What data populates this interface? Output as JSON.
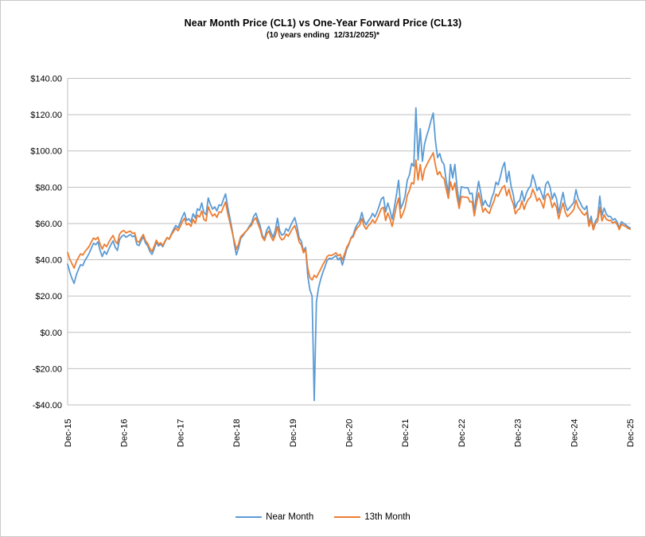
{
  "window": {
    "background": "#FFFFFF",
    "border_color": "#C9C9C9"
  },
  "title": "Near Month Price (CL1) vs One-Year Forward Price (CL13)",
  "subtitle": "(10 years ending  12/31/2025)*",
  "legend": [
    {
      "label": "Near Month",
      "color": "#5B9BD5"
    },
    {
      "label": "13th Month",
      "color": "#ED7D31"
    }
  ],
  "chart_data": {
    "type": "line",
    "title": "Near Month Price (CL1) vs One-Year Forward Price (CL13)",
    "subtitle": "(10 years ending  12/31/2025)*",
    "grid": "horizontal",
    "gridline_color": "#BFBFBF",
    "legend_position": "bottom",
    "x_axis": {
      "tick_labels": [
        "Dec-15",
        "Dec-16",
        "Dec-17",
        "Dec-18",
        "Dec-19",
        "Dec-20",
        "Dec-21",
        "Dec-22",
        "Dec-23",
        "Dec-24",
        "Dec-25"
      ],
      "label_rotation_deg": -90
    },
    "y_axis": {
      "tick_labels": [
        "$140.00",
        "$120.00",
        "$100.00",
        "$80.00",
        "$60.00",
        "$40.00",
        "$20.00",
        "$0.00",
        "-$20.00",
        "-$40.00"
      ],
      "max": 140,
      "min": -40,
      "tick_step": 20,
      "unit": "USD per barrel"
    },
    "points_per_year": 26,
    "x_start_label": "Dec-15",
    "x_end_label": "Dec-25",
    "series": [
      {
        "name": "Near Month",
        "color": "#5B9BD5",
        "values": [
          37.6,
          33.2,
          29.7,
          27.0,
          31.6,
          34.7,
          37.3,
          36.8,
          39.6,
          41.5,
          43.7,
          46.5,
          49.1,
          48.3,
          49.9,
          45.2,
          41.8,
          44.7,
          43.0,
          45.9,
          48.3,
          50.4,
          46.9,
          45.1,
          51.1,
          52.9,
          53.7,
          52.4,
          53.2,
          53.9,
          52.7,
          53.3,
          48.5,
          47.8,
          50.6,
          52.7,
          49.2,
          47.7,
          44.7,
          43.0,
          46.0,
          49.7,
          47.6,
          48.6,
          47.2,
          49.9,
          52.2,
          51.5,
          54.4,
          56.8,
          58.9,
          57.6,
          60.4,
          63.6,
          66.1,
          61.7,
          62.6,
          60.9,
          65.4,
          63.0,
          68.1,
          67.2,
          71.3,
          65.9,
          64.9,
          74.1,
          70.5,
          67.9,
          69.2,
          66.9,
          70.3,
          69.8,
          73.2,
          76.4,
          69.1,
          63.1,
          56.7,
          49.0,
          42.7,
          46.5,
          51.7,
          53.2,
          55.0,
          56.5,
          58.6,
          60.2,
          63.9,
          65.7,
          62.1,
          58.6,
          53.5,
          51.4,
          56.3,
          58.4,
          55.0,
          52.4,
          56.2,
          62.9,
          56.0,
          53.6,
          54.2,
          57.2,
          55.8,
          58.6,
          61.1,
          63.3,
          58.5,
          52.1,
          50.3,
          44.8,
          46.8,
          31.1,
          23.4,
          20.1,
          -37.6,
          16.9,
          24.6,
          29.4,
          33.2,
          36.3,
          39.8,
          40.8,
          40.6,
          41.3,
          42.3,
          40.0,
          41.1,
          37.1,
          41.4,
          45.9,
          48.4,
          52.2,
          53.6,
          57.5,
          59.8,
          61.5,
          66.1,
          61.4,
          59.3,
          61.5,
          63.1,
          65.6,
          63.6,
          66.3,
          69.6,
          73.5,
          74.6,
          66.4,
          71.3,
          67.4,
          62.3,
          68.7,
          75.8,
          83.8,
          68.2,
          71.1,
          75.2,
          83.8,
          86.8,
          93.1,
          91.6,
          123.7,
          95.0,
          112.3,
          94.3,
          103.8,
          108.3,
          112.2,
          116.9,
          120.9,
          105.8,
          96.3,
          98.6,
          94.3,
          92.5,
          83.5,
          76.7,
          92.6,
          85.1,
          92.6,
          80.1,
          71.0,
          80.3,
          79.9,
          79.7,
          79.7,
          76.3,
          76.7,
          66.7,
          75.7,
          83.3,
          76.8,
          70.0,
          72.7,
          70.2,
          69.2,
          73.9,
          77.1,
          82.8,
          81.3,
          85.6,
          90.8,
          93.7,
          82.8,
          88.8,
          80.5,
          75.9,
          68.6,
          71.7,
          72.7,
          78.0,
          72.3,
          76.5,
          79.2,
          80.6,
          86.9,
          83.1,
          78.1,
          80.0,
          76.9,
          73.3,
          81.5,
          83.2,
          80.1,
          73.5,
          76.7,
          73.6,
          65.8,
          71.6,
          77.1,
          70.6,
          67.2,
          68.6,
          70.1,
          71.7,
          78.7,
          73.6,
          71.4,
          68.9,
          67.7,
          69.7,
          59.6,
          64.0,
          57.1,
          61.5,
          62.9,
          75.1,
          64.4,
          68.5,
          65.2,
          63.9,
          63.8,
          61.9,
          62.7,
          60.9,
          57.5,
          61.0,
          60.1,
          59.3,
          58.2,
          57.5
        ]
      },
      {
        "name": "13th Month",
        "color": "#ED7D31",
        "values": [
          44.0,
          40.3,
          37.9,
          35.4,
          38.9,
          41.2,
          43.3,
          42.6,
          44.5,
          45.9,
          47.5,
          49.9,
          52.0,
          51.2,
          52.5,
          48.7,
          45.9,
          48.6,
          47.2,
          49.6,
          51.7,
          53.4,
          50.3,
          48.8,
          54.1,
          55.6,
          56.1,
          54.8,
          55.4,
          55.8,
          54.5,
          54.9,
          50.4,
          49.6,
          52.1,
          53.9,
          50.5,
          49.0,
          46.2,
          44.6,
          47.4,
          50.8,
          48.6,
          49.4,
          47.9,
          50.3,
          52.3,
          51.3,
          53.8,
          55.7,
          57.4,
          56.0,
          58.2,
          60.9,
          62.9,
          59.2,
          60.0,
          58.4,
          62.3,
          60.1,
          64.6,
          63.6,
          66.9,
          62.2,
          61.4,
          69.3,
          66.3,
          64.1,
          65.3,
          63.4,
          66.4,
          66.1,
          69.1,
          71.9,
          65.6,
          60.6,
          55.6,
          50.6,
          45.8,
          48.6,
          52.8,
          53.9,
          55.2,
          56.3,
          57.9,
          59.0,
          61.8,
          63.1,
          59.9,
          56.8,
          52.4,
          50.6,
          54.3,
          55.9,
          52.7,
          50.6,
          53.5,
          58.3,
          52.8,
          51.0,
          51.6,
          54.2,
          53.0,
          55.2,
          57.3,
          58.8,
          55.0,
          49.8,
          48.3,
          43.9,
          45.7,
          35.4,
          30.1,
          28.9,
          31.5,
          30.2,
          32.6,
          34.8,
          37.4,
          39.4,
          41.9,
          42.6,
          42.4,
          43.0,
          43.9,
          42.2,
          43.0,
          39.9,
          43.1,
          46.9,
          48.9,
          51.8,
          52.7,
          55.9,
          57.8,
          59.0,
          62.8,
          58.7,
          56.9,
          58.8,
          60.0,
          62.1,
          60.2,
          62.5,
          65.2,
          68.2,
          68.9,
          61.7,
          65.8,
          62.6,
          58.4,
          63.9,
          69.8,
          74.0,
          63.0,
          65.4,
          68.9,
          75.5,
          78.2,
          82.5,
          81.8,
          95.0,
          84.0,
          92.5,
          83.9,
          89.9,
          92.3,
          94.7,
          96.8,
          99.0,
          92.2,
          86.9,
          88.6,
          85.7,
          84.8,
          78.9,
          73.8,
          83.0,
          78.4,
          82.4,
          74.5,
          68.3,
          74.9,
          74.6,
          74.5,
          74.4,
          71.9,
          72.1,
          64.2,
          71.2,
          76.9,
          71.8,
          66.3,
          68.4,
          66.5,
          65.6,
          69.4,
          72.1,
          76.2,
          75.0,
          77.6,
          79.9,
          80.9,
          75.3,
          78.9,
          73.9,
          70.8,
          65.3,
          67.4,
          68.2,
          72.4,
          67.8,
          71.2,
          73.4,
          74.6,
          78.9,
          76.2,
          72.4,
          74.0,
          71.6,
          68.5,
          75.2,
          76.5,
          74.1,
          68.8,
          71.4,
          68.9,
          62.6,
          67.3,
          71.3,
          66.4,
          63.8,
          64.9,
          66.2,
          67.8,
          72.9,
          69.0,
          67.4,
          65.5,
          64.6,
          66.3,
          58.4,
          62.0,
          56.5,
          60.1,
          61.2,
          68.9,
          61.4,
          64.8,
          62.4,
          61.6,
          61.7,
          60.2,
          61.0,
          59.5,
          56.6,
          59.7,
          58.9,
          58.3,
          57.4,
          56.9
        ]
      }
    ]
  }
}
